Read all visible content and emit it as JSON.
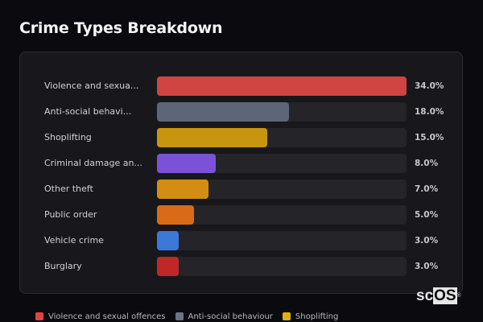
{
  "header": {
    "title": "Crime Types Breakdown"
  },
  "chart_data": {
    "type": "bar",
    "orientation": "horizontal",
    "title": "Crime Types Breakdown",
    "categories": [
      "Violence and sexual offences",
      "Anti-social behaviour",
      "Shoplifting",
      "Criminal damage and arson",
      "Other theft",
      "Public order",
      "Vehicle crime",
      "Burglary"
    ],
    "display_labels": [
      "Violence and sexua...",
      "Anti-social behavi...",
      "Shoplifting",
      "Criminal damage an...",
      "Other theft",
      "Public order",
      "Vehicle crime",
      "Burglary"
    ],
    "values": [
      34.0,
      18.0,
      15.0,
      8.0,
      7.0,
      5.0,
      3.0,
      3.0
    ],
    "value_labels": [
      "34.0%",
      "18.0%",
      "15.0%",
      "8.0%",
      "7.0%",
      "5.0%",
      "3.0%",
      "3.0%"
    ],
    "colors": [
      "#d04444",
      "#5c6678",
      "#c8960e",
      "#7b52d6",
      "#d38d12",
      "#d96a18",
      "#3b78d8",
      "#c02828"
    ],
    "unit": "%",
    "max_value": 34.0,
    "grid": false,
    "legend_position": "bottom",
    "legend": [
      {
        "label": "Violence and sexual offences",
        "color": "#e04444"
      },
      {
        "label": "Anti-social behaviour",
        "color": "#6a7488"
      },
      {
        "label": "Shoplifting",
        "color": "#e0b010"
      }
    ]
  },
  "watermark": {
    "text_plain": "sc",
    "text_highlight": "OS",
    "mark": "®"
  }
}
